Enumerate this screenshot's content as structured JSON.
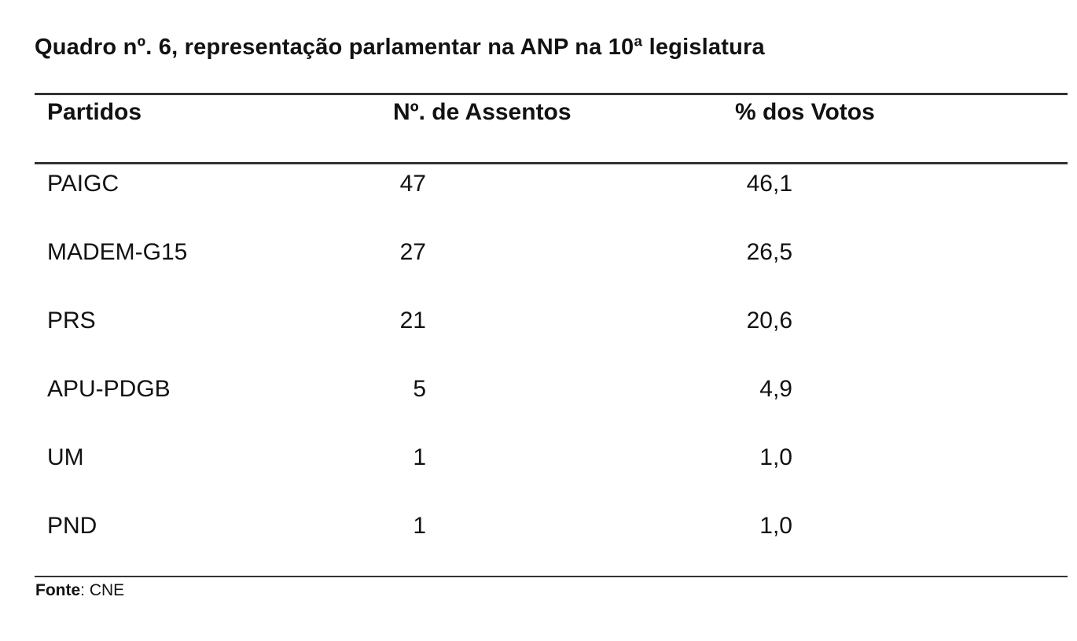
{
  "caption": "Quadro nº. 6, representação parlamentar na ANP na 10ª legislatura",
  "table": {
    "columns": [
      "Partidos",
      "Nº. de Assentos",
      "% dos Votos"
    ],
    "rows": [
      {
        "party": "PAIGC",
        "seats": "47",
        "votes_pct": "46,1"
      },
      {
        "party": "MADEM-G15",
        "seats": "27",
        "votes_pct": "26,5"
      },
      {
        "party": "PRS",
        "seats": "21",
        "votes_pct": "20,6"
      },
      {
        "party": "APU-PDGB",
        "seats": "5",
        "votes_pct": "4,9"
      },
      {
        "party": "UM",
        "seats": "1",
        "votes_pct": "1,0"
      },
      {
        "party": "PND",
        "seats": "1",
        "votes_pct": "1,0"
      }
    ]
  },
  "footer": {
    "source_label": "Fonte",
    "source_value": ": CNE"
  },
  "colors": {
    "background": "#ffffff",
    "text": "#121212",
    "rule": "#333333"
  }
}
